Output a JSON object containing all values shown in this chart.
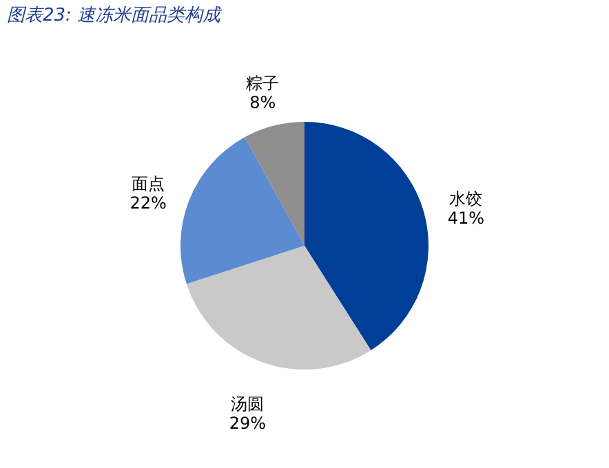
{
  "chart_data": {
    "type": "pie",
    "title": "图表23: 速冻米面品类构成",
    "categories": [
      "水饺",
      "汤圆",
      "面点",
      "粽子"
    ],
    "values": [
      41,
      29,
      22,
      8
    ],
    "value_labels": [
      "41%",
      "29%",
      "22%",
      "8%"
    ],
    "colors": [
      "#003f98",
      "#c9c9c9",
      "#5b8bd0",
      "#8f8f8f"
    ],
    "legend": false
  }
}
